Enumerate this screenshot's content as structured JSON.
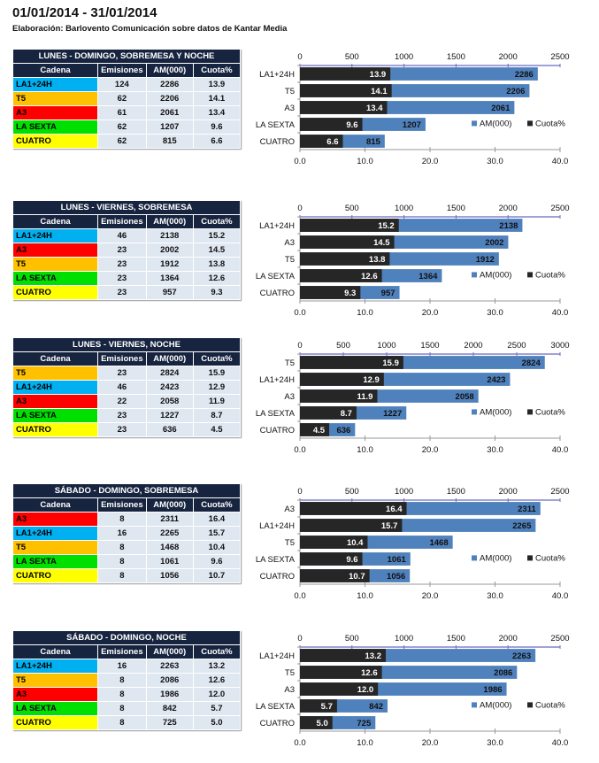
{
  "header": {
    "title": "01/01/2014 - 31/01/2014",
    "subtitle": "Elaboración:  Barlovento Comunicación  sobre datos de Kantar Media"
  },
  "columns": [
    "Cadena",
    "Emisiones",
    "AM(000)",
    "Cuota%"
  ],
  "channel_colors": {
    "LA1+24H": "#00b0f0",
    "T5": "#ffc000",
    "A3": "#ff0000",
    "LA SEXTA": "#00e000",
    "CUATRO": "#ffff00"
  },
  "series_colors": {
    "AM(000)": "#4f81bd",
    "Cuota%": "#262626"
  },
  "legend": [
    "AM(000)",
    "Cuota%"
  ],
  "sections": [
    {
      "title": "LUNES - DOMINGO, SOBREMESA Y NOCHE",
      "rows": [
        {
          "cadena": "LA1+24H",
          "emisiones": "124",
          "am": "2286",
          "cuota": "13.9"
        },
        {
          "cadena": "T5",
          "emisiones": "62",
          "am": "2206",
          "cuota": "14.1"
        },
        {
          "cadena": "A3",
          "emisiones": "61",
          "am": "2061",
          "cuota": "13.4"
        },
        {
          "cadena": "LA SEXTA",
          "emisiones": "62",
          "am": "1207",
          "cuota": "9.6"
        },
        {
          "cadena": "CUATRO",
          "emisiones": "62",
          "am": "815",
          "cuota": "6.6"
        }
      ]
    },
    {
      "title": "LUNES - VIERNES, SOBREMESA",
      "rows": [
        {
          "cadena": "LA1+24H",
          "emisiones": "46",
          "am": "2138",
          "cuota": "15.2"
        },
        {
          "cadena": "A3",
          "emisiones": "23",
          "am": "2002",
          "cuota": "14.5"
        },
        {
          "cadena": "T5",
          "emisiones": "23",
          "am": "1912",
          "cuota": "13.8"
        },
        {
          "cadena": "LA SEXTA",
          "emisiones": "23",
          "am": "1364",
          "cuota": "12.6"
        },
        {
          "cadena": "CUATRO",
          "emisiones": "23",
          "am": "957",
          "cuota": "9.3"
        }
      ]
    },
    {
      "title": "LUNES - VIERNES, NOCHE",
      "rows": [
        {
          "cadena": "T5",
          "emisiones": "23",
          "am": "2824",
          "cuota": "15.9"
        },
        {
          "cadena": "LA1+24H",
          "emisiones": "46",
          "am": "2423",
          "cuota": "12.9"
        },
        {
          "cadena": "A3",
          "emisiones": "22",
          "am": "2058",
          "cuota": "11.9"
        },
        {
          "cadena": "LA SEXTA",
          "emisiones": "23",
          "am": "1227",
          "cuota": "8.7"
        },
        {
          "cadena": "CUATRO",
          "emisiones": "23",
          "am": "636",
          "cuota": "4.5"
        }
      ]
    },
    {
      "title": "SÁBADO - DOMINGO, SOBREMESA",
      "rows": [
        {
          "cadena": "A3",
          "emisiones": "8",
          "am": "2311",
          "cuota": "16.4"
        },
        {
          "cadena": "LA1+24H",
          "emisiones": "16",
          "am": "2265",
          "cuota": "15.7"
        },
        {
          "cadena": "T5",
          "emisiones": "8",
          "am": "1468",
          "cuota": "10.4"
        },
        {
          "cadena": "LA SEXTA",
          "emisiones": "8",
          "am": "1061",
          "cuota": "9.6"
        },
        {
          "cadena": "CUATRO",
          "emisiones": "8",
          "am": "1056",
          "cuota": "10.7"
        }
      ]
    },
    {
      "title": "SÁBADO - DOMINGO, NOCHE",
      "rows": [
        {
          "cadena": "LA1+24H",
          "emisiones": "16",
          "am": "2263",
          "cuota": "13.2"
        },
        {
          "cadena": "T5",
          "emisiones": "8",
          "am": "2086",
          "cuota": "12.6"
        },
        {
          "cadena": "A3",
          "emisiones": "8",
          "am": "1986",
          "cuota": "12.0"
        },
        {
          "cadena": "LA SEXTA",
          "emisiones": "8",
          "am": "842",
          "cuota": "5.7"
        },
        {
          "cadena": "CUATRO",
          "emisiones": "8",
          "am": "725",
          "cuota": "5.0"
        }
      ]
    }
  ],
  "chart_data": [
    {
      "type": "bar",
      "orientation": "horizontal",
      "title": "LUNES - DOMINGO, SOBREMESA Y NOCHE",
      "categories": [
        "LA1+24H",
        "T5",
        "A3",
        "LA SEXTA",
        "CUATRO"
      ],
      "series": [
        {
          "name": "AM(000)",
          "axis": "top",
          "values": [
            2286,
            2206,
            2061,
            1207,
            815
          ]
        },
        {
          "name": "Cuota%",
          "axis": "bottom",
          "values": [
            13.9,
            14.1,
            13.4,
            9.6,
            6.6
          ]
        }
      ],
      "top_axis": {
        "range": [
          0,
          2500
        ],
        "ticks": [
          "0",
          "500",
          "1000",
          "1500",
          "2000",
          "2500"
        ]
      },
      "bottom_axis": {
        "range": [
          0,
          40
        ],
        "ticks": [
          "0.0",
          "10.0",
          "20.0",
          "30.0",
          "40.0"
        ]
      },
      "legend_position": "bottom-right",
      "grid": false
    },
    {
      "type": "bar",
      "orientation": "horizontal",
      "title": "LUNES - VIERNES, SOBREMESA",
      "categories": [
        "LA1+24H",
        "A3",
        "T5",
        "LA SEXTA",
        "CUATRO"
      ],
      "series": [
        {
          "name": "AM(000)",
          "axis": "top",
          "values": [
            2138,
            2002,
            1912,
            1364,
            957
          ]
        },
        {
          "name": "Cuota%",
          "axis": "bottom",
          "values": [
            15.2,
            14.5,
            13.8,
            12.6,
            9.3
          ]
        }
      ],
      "top_axis": {
        "range": [
          0,
          2500
        ],
        "ticks": [
          "0",
          "500",
          "1000",
          "1500",
          "2000",
          "2500"
        ]
      },
      "bottom_axis": {
        "range": [
          0,
          40
        ],
        "ticks": [
          "0.0",
          "10.0",
          "20.0",
          "30.0",
          "40.0"
        ]
      },
      "legend_position": "bottom-right",
      "grid": false
    },
    {
      "type": "bar",
      "orientation": "horizontal",
      "title": "LUNES - VIERNES, NOCHE",
      "categories": [
        "T5",
        "LA1+24H",
        "A3",
        "LA SEXTA",
        "CUATRO"
      ],
      "series": [
        {
          "name": "AM(000)",
          "axis": "top",
          "values": [
            2824,
            2423,
            2058,
            1227,
            636
          ]
        },
        {
          "name": "Cuota%",
          "axis": "bottom",
          "values": [
            15.9,
            12.9,
            11.9,
            8.7,
            4.5
          ]
        }
      ],
      "top_axis": {
        "range": [
          0,
          3000
        ],
        "ticks": [
          "0",
          "500",
          "1000",
          "1500",
          "2000",
          "2500",
          "3000"
        ]
      },
      "bottom_axis": {
        "range": [
          0,
          40
        ],
        "ticks": [
          "0.0",
          "10.0",
          "20.0",
          "30.0",
          "40.0"
        ]
      },
      "legend_position": "bottom-right",
      "grid": false
    },
    {
      "type": "bar",
      "orientation": "horizontal",
      "title": "SÁBADO - DOMINGO, SOBREMESA",
      "categories": [
        "A3",
        "LA1+24H",
        "T5",
        "LA SEXTA",
        "CUATRO"
      ],
      "series": [
        {
          "name": "AM(000)",
          "axis": "top",
          "values": [
            2311,
            2265,
            1468,
            1061,
            1056
          ]
        },
        {
          "name": "Cuota%",
          "axis": "bottom",
          "values": [
            16.4,
            15.7,
            10.4,
            9.6,
            10.7
          ]
        }
      ],
      "top_axis": {
        "range": [
          0,
          2500
        ],
        "ticks": [
          "0",
          "500",
          "1000",
          "1500",
          "2000",
          "2500"
        ]
      },
      "bottom_axis": {
        "range": [
          0,
          40
        ],
        "ticks": [
          "0.0",
          "10.0",
          "20.0",
          "30.0",
          "40.0"
        ]
      },
      "legend_position": "bottom-right",
      "grid": false
    },
    {
      "type": "bar",
      "orientation": "horizontal",
      "title": "SÁBADO - DOMINGO, NOCHE",
      "categories": [
        "LA1+24H",
        "T5",
        "A3",
        "LA SEXTA",
        "CUATRO"
      ],
      "series": [
        {
          "name": "AM(000)",
          "axis": "top",
          "values": [
            2263,
            2086,
            1986,
            842,
            725
          ]
        },
        {
          "name": "Cuota%",
          "axis": "bottom",
          "values": [
            13.2,
            12.6,
            12.0,
            5.7,
            5.0
          ]
        }
      ],
      "top_axis": {
        "range": [
          0,
          2500
        ],
        "ticks": [
          "0",
          "500",
          "1000",
          "1500",
          "2000",
          "2500"
        ]
      },
      "bottom_axis": {
        "range": [
          0,
          40
        ],
        "ticks": [
          "0.0",
          "10.0",
          "20.0",
          "30.0",
          "40.0"
        ]
      },
      "legend_position": "bottom-right",
      "grid": false
    }
  ]
}
